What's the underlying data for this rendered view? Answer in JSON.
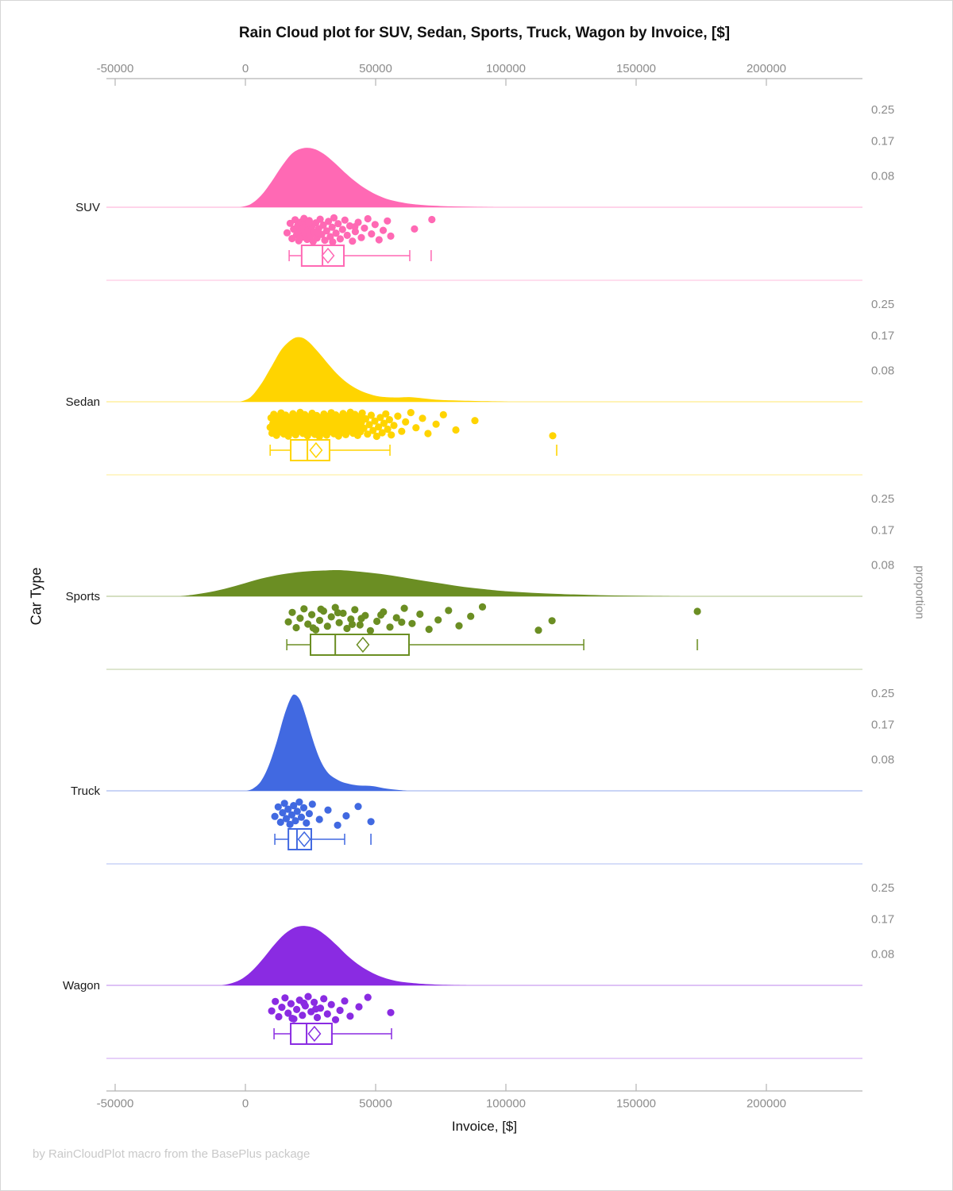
{
  "title": "Rain Cloud plot for SUV, Sedan, Sports, Truck, Wagon by Invoice, [$]",
  "footer": "by RainCloudPlot macro from the BasePlus package",
  "chart_data": {
    "type": "raincloud",
    "title": "Rain Cloud plot for SUV, Sedan, Sports, Truck, Wagon by Invoice, [$]",
    "xlabel": "Invoice, [$]",
    "ylabel": "Car Type",
    "ylabel_right": "proportion",
    "grid": false,
    "xlim": [
      -53400,
      236900
    ],
    "x_ticks": [
      -50000,
      0,
      50000,
      100000,
      150000,
      200000
    ],
    "proportion_ticks": [
      0.25,
      0.17,
      0.08
    ],
    "categories": [
      "SUV",
      "Sedan",
      "Sports",
      "Truck",
      "Wagon"
    ],
    "series": [
      {
        "name": "SUV",
        "color": "#FF69B4",
        "density": [
          [
            -2000,
            0
          ],
          [
            2000,
            0.008
          ],
          [
            6000,
            0.03
          ],
          [
            10000,
            0.065
          ],
          [
            14000,
            0.105
          ],
          [
            18000,
            0.138
          ],
          [
            22000,
            0.151
          ],
          [
            26000,
            0.15
          ],
          [
            30000,
            0.137
          ],
          [
            34000,
            0.115
          ],
          [
            38000,
            0.09
          ],
          [
            42000,
            0.067
          ],
          [
            46000,
            0.048
          ],
          [
            50000,
            0.033
          ],
          [
            54000,
            0.022
          ],
          [
            58000,
            0.015
          ],
          [
            62000,
            0.01
          ],
          [
            66000,
            0.007
          ],
          [
            72000,
            0.004
          ],
          [
            80000,
            0.002
          ],
          [
            88000,
            0.001
          ],
          [
            96000,
            0
          ]
        ],
        "box": {
          "whisker_low": 16800,
          "q1": 21600,
          "median": 29600,
          "mean": 31700,
          "q3": 37800,
          "whisker_high": 63100,
          "outliers": [
            71300
          ]
        },
        "points": [
          16000,
          17200,
          17900,
          18500,
          19100,
          19600,
          20100,
          20500,
          20900,
          21300,
          21700,
          22100,
          22500,
          22900,
          23300,
          23700,
          24100,
          24500,
          25000,
          25500,
          26000,
          26500,
          27000,
          27500,
          28100,
          28700,
          29300,
          29900,
          30500,
          31200,
          31900,
          32600,
          33300,
          34000,
          34800,
          35600,
          36400,
          37300,
          38200,
          39100,
          40100,
          41100,
          42200,
          43300,
          44500,
          45700,
          47000,
          48400,
          49800,
          51300,
          52900,
          54500,
          55800,
          42000,
          33500,
          27800,
          24300,
          20700,
          64900,
          71600
        ]
      },
      {
        "name": "Sedan",
        "color": "#FFD400",
        "density": [
          [
            -2000,
            0
          ],
          [
            2000,
            0.012
          ],
          [
            6000,
            0.045
          ],
          [
            10000,
            0.09
          ],
          [
            14000,
            0.135
          ],
          [
            18000,
            0.16
          ],
          [
            21000,
            0.165
          ],
          [
            24000,
            0.155
          ],
          [
            28000,
            0.127
          ],
          [
            32000,
            0.095
          ],
          [
            36000,
            0.066
          ],
          [
            40000,
            0.044
          ],
          [
            44000,
            0.029
          ],
          [
            48000,
            0.019
          ],
          [
            52000,
            0.013
          ],
          [
            58000,
            0.011
          ],
          [
            63000,
            0.012
          ],
          [
            68000,
            0.009
          ],
          [
            74000,
            0.005
          ],
          [
            82000,
            0.003
          ],
          [
            92000,
            0.0015
          ],
          [
            102000,
            0
          ]
        ],
        "box": {
          "whisker_low": 9500,
          "q1": 17400,
          "median": 23800,
          "mean": 27100,
          "q3": 32300,
          "whisker_high": 55500,
          "outliers": [
            119500
          ]
        },
        "points": [
          9500,
          9850,
          10200,
          10550,
          10900,
          11250,
          11600,
          11950,
          12300,
          12650,
          13000,
          13350,
          13700,
          14050,
          14400,
          14750,
          15100,
          15450,
          15800,
          16150,
          16500,
          16850,
          17200,
          17550,
          17900,
          18250,
          18600,
          18950,
          19300,
          19650,
          20000,
          20350,
          20700,
          21050,
          21400,
          21750,
          22100,
          22450,
          22800,
          23150,
          23500,
          23850,
          24200,
          24550,
          24900,
          25250,
          25600,
          25950,
          26300,
          26650,
          27000,
          27350,
          27700,
          28050,
          28400,
          28750,
          29100,
          29450,
          29800,
          30150,
          30500,
          30850,
          31200,
          31550,
          31900,
          32250,
          32600,
          32950,
          33300,
          33650,
          34000,
          34350,
          34700,
          35050,
          35400,
          35750,
          36100,
          36450,
          36800,
          37150,
          37500,
          37850,
          38200,
          38550,
          38900,
          39250,
          39600,
          39950,
          40300,
          40650,
          41000,
          41350,
          41700,
          42050,
          42400,
          42750,
          43100,
          43450,
          43800,
          44150,
          44500,
          44850,
          45500,
          46200,
          46900,
          47600,
          48300,
          49000,
          49700,
          50400,
          51100,
          51800,
          52500,
          53200,
          53900,
          54600,
          55300,
          56000,
          57000,
          58500,
          60000,
          61500,
          63500,
          65500,
          68000,
          70100,
          73200,
          76000,
          80800,
          88100,
          118000
        ]
      },
      {
        "name": "Sports",
        "color": "#6B8E23",
        "density": [
          [
            -25000,
            0
          ],
          [
            -18000,
            0.006
          ],
          [
            -10000,
            0.016
          ],
          [
            -2000,
            0.03
          ],
          [
            6000,
            0.045
          ],
          [
            14000,
            0.056
          ],
          [
            22000,
            0.063
          ],
          [
            30000,
            0.066
          ],
          [
            36000,
            0.067
          ],
          [
            44000,
            0.063
          ],
          [
            52000,
            0.057
          ],
          [
            60000,
            0.049
          ],
          [
            68000,
            0.04
          ],
          [
            76000,
            0.032
          ],
          [
            84000,
            0.024
          ],
          [
            92000,
            0.018
          ],
          [
            100000,
            0.013
          ],
          [
            110000,
            0.009
          ],
          [
            120000,
            0.006
          ],
          [
            130000,
            0.004
          ],
          [
            142000,
            0.002
          ],
          [
            155000,
            0.001
          ],
          [
            168000,
            0
          ]
        ],
        "box": {
          "whisker_low": 15900,
          "q1": 25000,
          "median": 34500,
          "mean": 45100,
          "q3": 62800,
          "whisker_high": 129900,
          "outliers": [
            173500
          ]
        },
        "points": [
          16500,
          18000,
          19500,
          21000,
          22500,
          24000,
          25500,
          27000,
          28500,
          30000,
          31500,
          33000,
          34500,
          36000,
          37500,
          39000,
          40500,
          42000,
          44000,
          46000,
          48000,
          50500,
          53000,
          55500,
          58000,
          61000,
          64000,
          67000,
          70500,
          74000,
          78000,
          82000,
          86500,
          91000,
          60000,
          35500,
          26000,
          44500,
          29000,
          41000,
          52000,
          112500,
          117700,
          173500
        ]
      },
      {
        "name": "Truck",
        "color": "#4169E1",
        "density": [
          [
            500,
            0
          ],
          [
            3000,
            0.006
          ],
          [
            6000,
            0.025
          ],
          [
            9000,
            0.065
          ],
          [
            12000,
            0.125
          ],
          [
            15000,
            0.195
          ],
          [
            17500,
            0.238
          ],
          [
            19000,
            0.246
          ],
          [
            21000,
            0.232
          ],
          [
            23000,
            0.195
          ],
          [
            25000,
            0.15
          ],
          [
            27000,
            0.108
          ],
          [
            29000,
            0.075
          ],
          [
            31000,
            0.052
          ],
          [
            33000,
            0.038
          ],
          [
            36000,
            0.026
          ],
          [
            39000,
            0.019
          ],
          [
            43000,
            0.014
          ],
          [
            47000,
            0.013
          ],
          [
            50000,
            0.011
          ],
          [
            53000,
            0.007
          ],
          [
            56000,
            0.004
          ],
          [
            59000,
            0.002
          ],
          [
            62000,
            0
          ]
        ],
        "box": {
          "whisker_low": 11300,
          "q1": 16500,
          "median": 19800,
          "mean": 22600,
          "q3": 25300,
          "whisker_high": 38100,
          "outliers": [
            48200
          ]
        },
        "points": [
          11300,
          12600,
          13500,
          14300,
          15000,
          15700,
          16400,
          17100,
          17800,
          18500,
          19200,
          19900,
          20700,
          21500,
          22400,
          23400,
          24500,
          25700,
          28400,
          31700,
          35400,
          38700,
          43300,
          48200
        ]
      },
      {
        "name": "Wagon",
        "color": "#8A2BE2",
        "density": [
          [
            -9000,
            0
          ],
          [
            -5000,
            0.006
          ],
          [
            -1000,
            0.018
          ],
          [
            3000,
            0.04
          ],
          [
            7000,
            0.07
          ],
          [
            11000,
            0.103
          ],
          [
            15000,
            0.131
          ],
          [
            19000,
            0.148
          ],
          [
            23000,
            0.152
          ],
          [
            27000,
            0.145
          ],
          [
            31000,
            0.127
          ],
          [
            35000,
            0.103
          ],
          [
            39000,
            0.077
          ],
          [
            43000,
            0.055
          ],
          [
            47000,
            0.038
          ],
          [
            51000,
            0.025
          ],
          [
            55000,
            0.016
          ],
          [
            59000,
            0.01
          ],
          [
            64000,
            0.006
          ],
          [
            70000,
            0.003
          ],
          [
            78000,
            0.001
          ],
          [
            86000,
            0
          ]
        ],
        "box": {
          "whisker_low": 11000,
          "q1": 17400,
          "median": 23500,
          "mean": 26500,
          "q3": 33200,
          "whisker_high": 56100,
          "outliers": []
        },
        "points": [
          10100,
          11500,
          12800,
          14000,
          15200,
          16400,
          17500,
          18600,
          19700,
          20800,
          21900,
          23000,
          24100,
          25200,
          26400,
          27600,
          28800,
          30100,
          31500,
          33000,
          34600,
          36300,
          38100,
          40200,
          43600,
          47000,
          55800,
          22500,
          18000,
          27000
        ]
      }
    ]
  }
}
